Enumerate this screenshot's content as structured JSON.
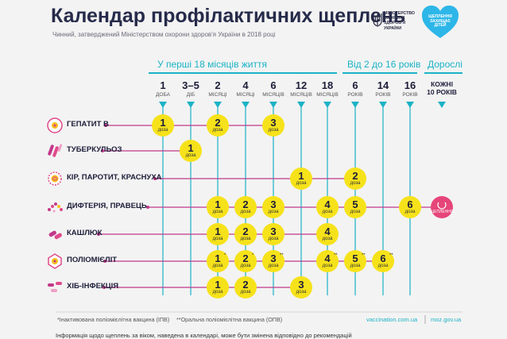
{
  "header": {
    "title": "Календар профілактичних щеплень",
    "subtitle": "Чинний, затверджений Міністерством охорони здоров'я України в 2018 році"
  },
  "logos": {
    "ministry": "МІНІСТЕРСТВО\nОХОРОНИ\nЗДОРОВ'Я\nУКРАЇНИ",
    "heart": "ЩЕПЛЕННЯ\nЗАХИЩАЄ\nДІТЕЙ"
  },
  "sections": [
    {
      "label": "У перші 18 місяців життя"
    },
    {
      "label": "Від 2 до 16 років"
    },
    {
      "label": "Дорослі"
    }
  ],
  "columns": [
    {
      "num": "1",
      "unit": "ДОБА"
    },
    {
      "num": "3–5",
      "unit": "ДІБ"
    },
    {
      "num": "2",
      "unit": "МІСЯЦІ"
    },
    {
      "num": "4",
      "unit": "МІСЯЦІ"
    },
    {
      "num": "6",
      "unit": "МІСЯЦІВ"
    },
    {
      "num": "12",
      "unit": "МІСЯЦІВ"
    },
    {
      "num": "18",
      "unit": "МІСЯЦІВ"
    },
    {
      "num": "6",
      "unit": "РОКІВ"
    },
    {
      "num": "14",
      "unit": "РОКІВ"
    },
    {
      "num": "16",
      "unit": "РОКІВ"
    },
    {
      "num": "КОЖНІ\n10 РОКІВ",
      "unit": ""
    }
  ],
  "dose_unit": "доза",
  "boost_label": "ЩЕПЛЕННЯ",
  "rows": [
    {
      "label": "ГЕПАТИТ В",
      "icon": "hepatitis-virus-icon",
      "doses": [
        {
          "col": 0,
          "num": "1",
          "mark": ""
        },
        {
          "col": 2,
          "num": "2",
          "mark": ""
        },
        {
          "col": 4,
          "num": "3",
          "mark": ""
        }
      ]
    },
    {
      "label": "ТУБЕРКУЛЬОЗ",
      "icon": "tuberculosis-bacteria-icon",
      "doses": [
        {
          "col": 1,
          "num": "1",
          "mark": ""
        }
      ]
    },
    {
      "label": "КІР, ПАРОТИТ, КРАСНУХА",
      "icon": "measles-virus-icon",
      "doses": [
        {
          "col": 5,
          "num": "1",
          "mark": ""
        },
        {
          "col": 7,
          "num": "2",
          "mark": ""
        }
      ]
    },
    {
      "label": "ДИФТЕРІЯ, ПРАВЕЦЬ",
      "icon": "diphtheria-bacteria-icon",
      "doses": [
        {
          "col": 2,
          "num": "1",
          "mark": ""
        },
        {
          "col": 3,
          "num": "2",
          "mark": ""
        },
        {
          "col": 4,
          "num": "3",
          "mark": ""
        },
        {
          "col": 6,
          "num": "4",
          "mark": ""
        },
        {
          "col": 7,
          "num": "5",
          "mark": ""
        },
        {
          "col": 9,
          "num": "6",
          "mark": ""
        },
        {
          "col": 10,
          "num": "",
          "mark": "",
          "boost": true
        }
      ]
    },
    {
      "label": "КАШЛЮК",
      "icon": "pertussis-bacteria-icon",
      "doses": [
        {
          "col": 2,
          "num": "1",
          "mark": ""
        },
        {
          "col": 3,
          "num": "2",
          "mark": ""
        },
        {
          "col": 4,
          "num": "3",
          "mark": ""
        },
        {
          "col": 6,
          "num": "4",
          "mark": ""
        }
      ]
    },
    {
      "label": "ПОЛІОМІЄЛІТ",
      "icon": "polio-virus-icon",
      "doses": [
        {
          "col": 2,
          "num": "1",
          "mark": "*"
        },
        {
          "col": 3,
          "num": "2",
          "mark": "*"
        },
        {
          "col": 4,
          "num": "3",
          "mark": "**"
        },
        {
          "col": 6,
          "num": "4",
          "mark": "**"
        },
        {
          "col": 7,
          "num": "5",
          "mark": "**"
        },
        {
          "col": 8,
          "num": "6",
          "mark": "**"
        }
      ]
    },
    {
      "label": "ХІБ-ІНФЕКЦІЯ",
      "icon": "hib-bacteria-icon",
      "doses": [
        {
          "col": 2,
          "num": "1",
          "mark": ""
        },
        {
          "col": 3,
          "num": "2",
          "mark": ""
        },
        {
          "col": 5,
          "num": "3",
          "mark": ""
        }
      ]
    }
  ],
  "footnotes": [
    "*Інактивована поліомієлітна вакцина (ІПВ)",
    "**Оральна поліомієлітна вакцина (ОПВ)"
  ],
  "websites": [
    "vaccination.com.ua",
    "moz.gov.ua"
  ],
  "bottom_text": "Інформація щодо щеплень за віком, наведена в календарі, може бути змінена відповідно до рекомендацій",
  "colors": {
    "accent": "#1bb3c5",
    "dose": "#f6e21a",
    "boost": "#e6457a",
    "row_line": "#c2388a",
    "title": "#262b4a"
  }
}
